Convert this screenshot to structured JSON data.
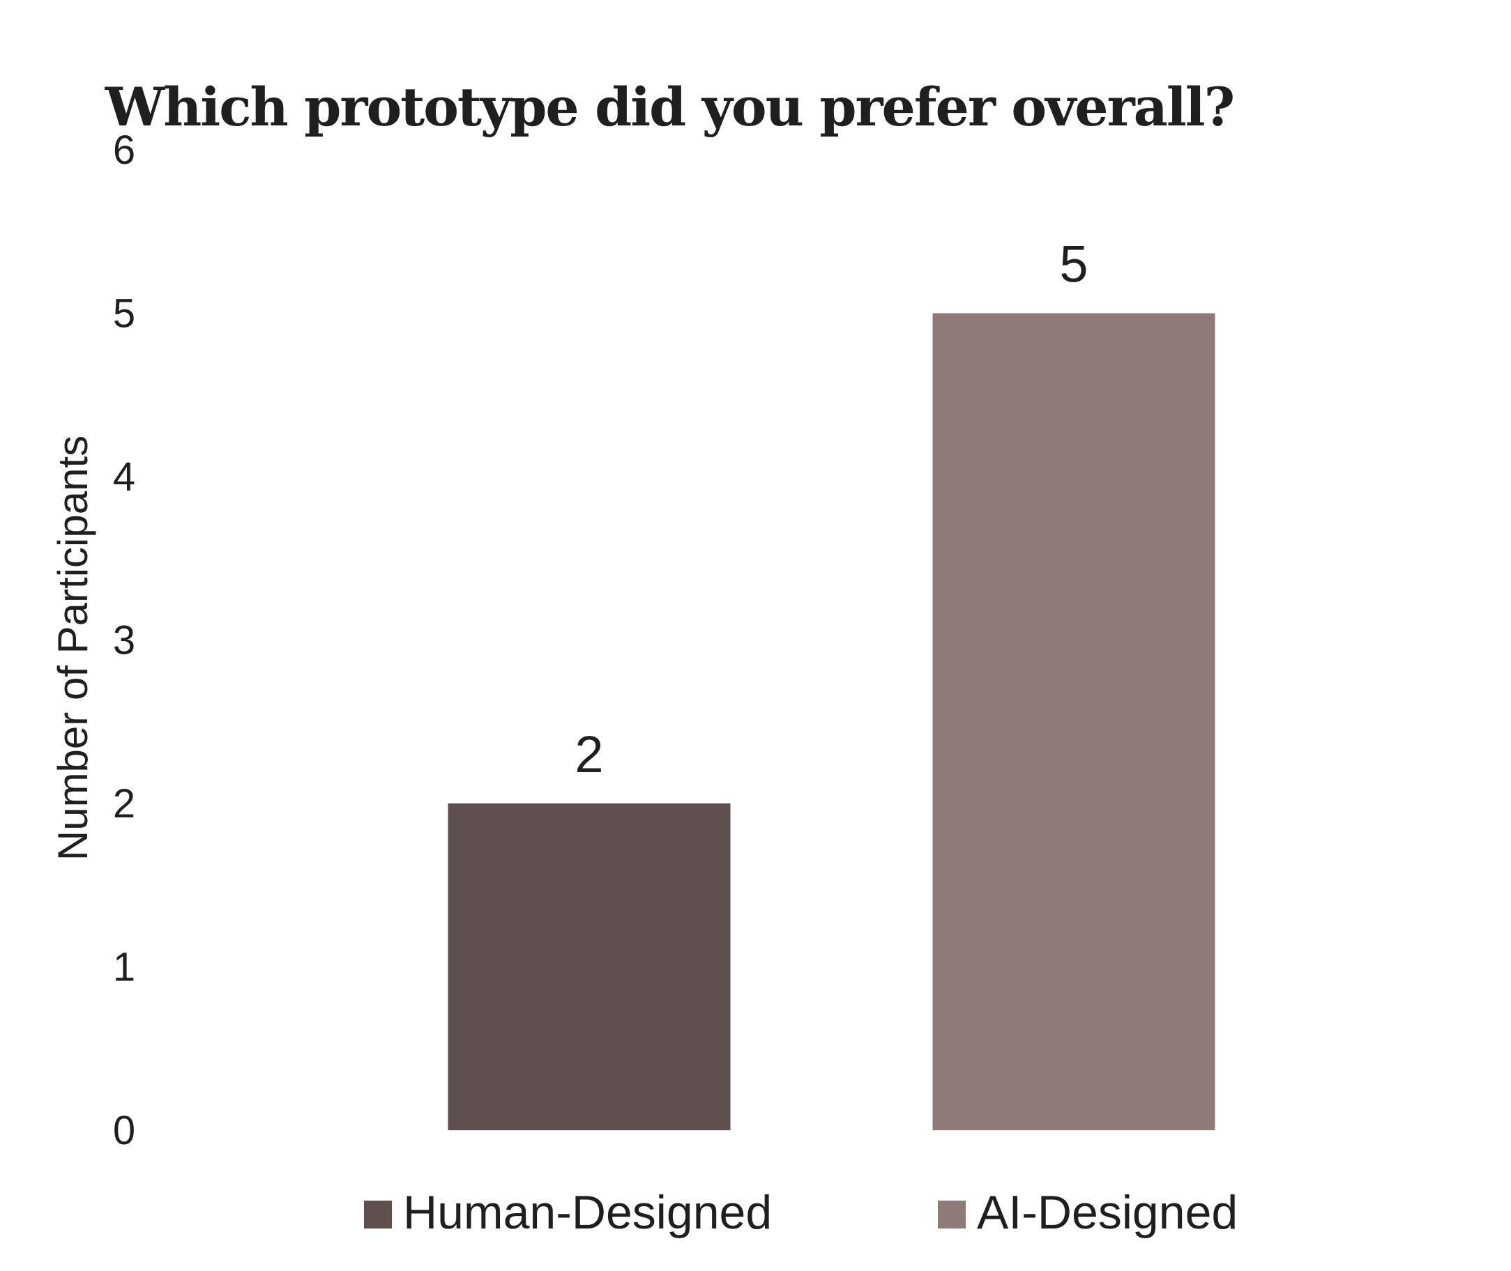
{
  "chart_data": {
    "type": "bar",
    "title": "Which prototype did you prefer overall?",
    "ylabel": "Number of Participants",
    "xlabel": "",
    "categories": [
      "Human-Designed",
      "AI-Designed"
    ],
    "values": [
      2,
      5
    ],
    "data_labels": [
      "2",
      "5"
    ],
    "colors": [
      "#5f4f4e",
      "#8f7a77"
    ],
    "ylim": [
      0,
      6
    ],
    "yticks": [
      0,
      1,
      2,
      3,
      4,
      5,
      6
    ],
    "ytick_labels": [
      "0",
      "1",
      "2",
      "3",
      "4",
      "5",
      "6"
    ],
    "grid": false,
    "legend": {
      "position": "bottom",
      "entries": [
        "Human-Designed",
        "AI-Designed"
      ]
    }
  }
}
